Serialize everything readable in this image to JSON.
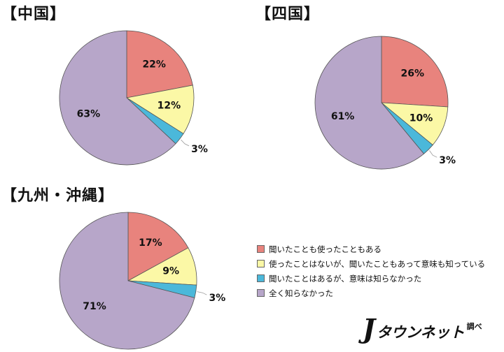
{
  "chart_data": [
    {
      "type": "pie",
      "title": "【中国】",
      "categories": [
        "聞いたことも使ったこともある",
        "使ったことはないが、聞いたこともあって意味も知っている",
        "聞いたことはあるが、意味は知らなかった",
        "全く知らなかった"
      ],
      "values": [
        22,
        12,
        3,
        63
      ],
      "labels": [
        "22%",
        "12%",
        "3%",
        "63%"
      ]
    },
    {
      "type": "pie",
      "title": "【四国】",
      "categories": [
        "聞いたことも使ったこともある",
        "使ったことはないが、聞いたこともあって意味も知っている",
        "聞いたことはあるが、意味は知らなかった",
        "全く知らなかった"
      ],
      "values": [
        26,
        10,
        3,
        61
      ],
      "labels": [
        "26%",
        "10%",
        "3%",
        "61%"
      ]
    },
    {
      "type": "pie",
      "title": "【九州・沖縄】",
      "categories": [
        "聞いたことも使ったこともある",
        "使ったことはないが、聞いたこともあって意味も知っている",
        "聞いたことはあるが、意味は知らなかった",
        "全く知らなかった"
      ],
      "values": [
        17,
        9,
        3,
        71
      ],
      "labels": [
        "17%",
        "9%",
        "3%",
        "71%"
      ]
    }
  ],
  "legend": [
    {
      "label": "聞いたことも使ったこともある",
      "color": "#e8837d"
    },
    {
      "label": "使ったことはないが、聞いたこともあって意味も知っている",
      "color": "#fbf8a6"
    },
    {
      "label": "聞いたことはあるが、意味は知らなかった",
      "color": "#4bb8da"
    },
    {
      "label": "全く知らなかった",
      "color": "#b7a6c9"
    }
  ],
  "brand": {
    "mark": "J",
    "name": "タウンネット",
    "sub": "調べ"
  }
}
